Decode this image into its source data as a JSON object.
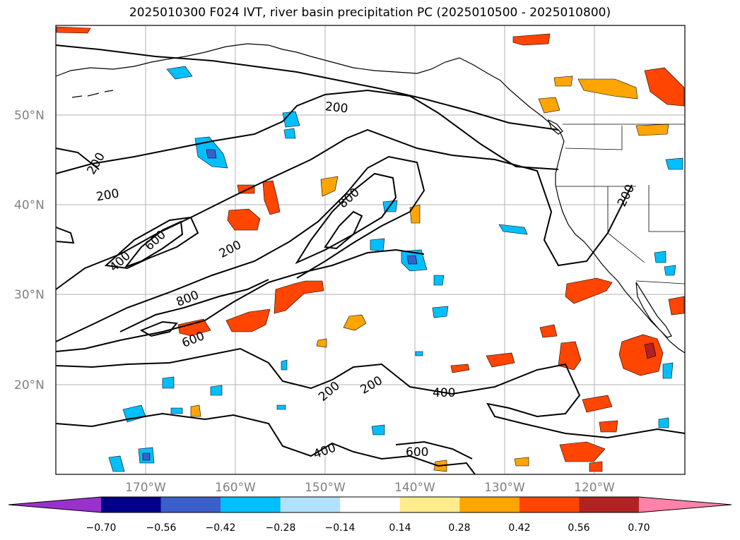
{
  "title": "2025010300 F024 IVT, river basin precipitation PC (2025010500 - 2025010800)",
  "map": {
    "lat_labels": [
      "50°N",
      "40°N",
      "30°N",
      "20°N"
    ],
    "lon_labels": [
      "170°W",
      "160°W",
      "150°W",
      "140°W",
      "130°W",
      "120°W"
    ],
    "ivt_contour_labels": [
      "200",
      "200",
      "200",
      "200",
      "200",
      "200",
      "200",
      "400",
      "400",
      "400",
      "600",
      "600",
      "600",
      "800",
      "800"
    ]
  },
  "colorbar": {
    "tick_labels": [
      "−0.70",
      "−0.56",
      "−0.42",
      "−0.28",
      "−0.14",
      "0.14",
      "0.28",
      "0.42",
      "0.56",
      "0.70"
    ],
    "colors": [
      "#9932cc",
      "#00008b",
      "#3a5fcd",
      "#00bfff",
      "#b0e2ff",
      "#ffffff",
      "#ffec8b",
      "#ffa500",
      "#ff4500",
      "#b22222",
      "#ff82ab"
    ]
  },
  "colors": {
    "pos_low": "#ffec8b",
    "pos_mid": "#ffa500",
    "pos_high": "#ff4500",
    "pos_top": "#b22222",
    "neg_low": "#b0e2ff",
    "neg_mid": "#00bfff",
    "neg_high": "#3a5fcd"
  }
}
